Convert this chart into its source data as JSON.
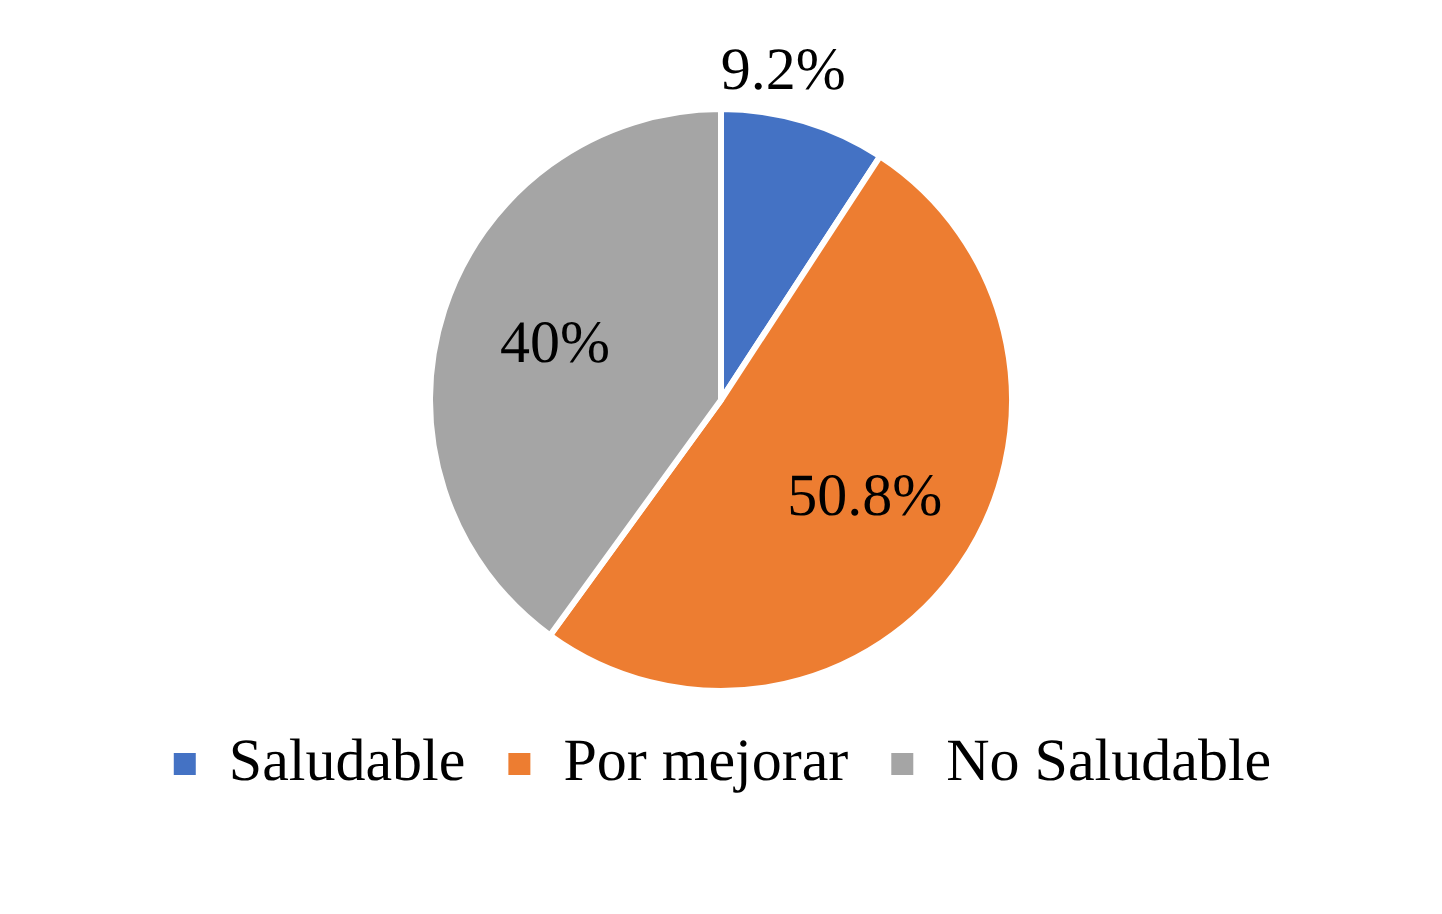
{
  "chart_data": {
    "type": "pie",
    "categories": [
      "Saludable",
      "Por mejorar",
      "No Saludable"
    ],
    "values": [
      9.2,
      50.8,
      40
    ],
    "colors": [
      "#4472c4",
      "#ed7d31",
      "#a5a5a5"
    ],
    "value_labels": [
      "9.2%",
      "50.8%",
      "40%"
    ],
    "legend": "bottom"
  }
}
